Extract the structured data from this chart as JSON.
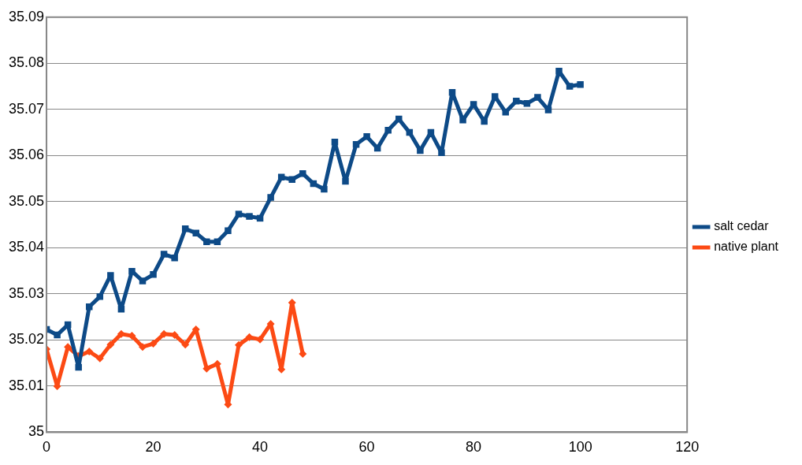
{
  "chart_data": {
    "type": "line",
    "xlim": [
      0,
      120
    ],
    "xticks": [
      0,
      20,
      40,
      60,
      80,
      100,
      120
    ],
    "ylim": [
      35,
      35.09
    ],
    "yticks": [
      35,
      35.01,
      35.02,
      35.03,
      35.04,
      35.05,
      35.06,
      35.07,
      35.08,
      35.09
    ],
    "grid": "y",
    "legend": "right",
    "line_style": "solid",
    "series": [
      {
        "name": "salt cedar",
        "color": "#0d4a87",
        "marker": "square",
        "x": [
          0,
          2,
          4,
          6,
          8,
          10,
          12,
          14,
          16,
          18,
          20,
          22,
          24,
          26,
          28,
          30,
          32,
          34,
          36,
          38,
          40,
          42,
          44,
          46,
          48,
          50,
          52,
          54,
          56,
          58,
          60,
          62,
          64,
          66,
          68,
          70,
          72,
          74,
          76,
          78,
          80,
          82,
          84,
          86,
          88,
          90,
          92,
          94,
          96,
          98,
          100
        ],
        "values": [
          35.0223,
          35.0211,
          35.0233,
          35.0141,
          35.0272,
          35.0294,
          35.034,
          35.0267,
          35.0349,
          35.0328,
          35.0342,
          35.0386,
          35.0378,
          35.0441,
          35.0432,
          35.0413,
          35.0413,
          35.0437,
          35.0473,
          35.0468,
          35.0464,
          35.0509,
          35.0553,
          35.0548,
          35.0561,
          35.0539,
          35.0527,
          35.0629,
          35.0544,
          35.0624,
          35.0641,
          35.0616,
          35.0655,
          35.0679,
          35.065,
          35.0611,
          35.065,
          35.0606,
          35.0737,
          35.0677,
          35.0711,
          35.0674,
          35.0728,
          35.0694,
          35.0718,
          35.0713,
          35.0726,
          35.0699,
          35.0783,
          35.075,
          35.0754
        ]
      },
      {
        "name": "native plant",
        "color": "#fc4a14",
        "marker": "diamond",
        "x": [
          0,
          2,
          4,
          6,
          8,
          10,
          12,
          14,
          16,
          18,
          20,
          22,
          24,
          26,
          28,
          30,
          32,
          34,
          36,
          38,
          40,
          42,
          44,
          46,
          48
        ],
        "values": [
          35.018,
          35.01,
          35.0185,
          35.0165,
          35.0175,
          35.016,
          35.019,
          35.0213,
          35.0209,
          35.0185,
          35.0192,
          35.0213,
          35.0211,
          35.019,
          35.0223,
          35.0138,
          35.0148,
          35.006,
          35.0189,
          35.0206,
          35.0201,
          35.0235,
          35.0136,
          35.0281,
          35.017
        ]
      }
    ]
  }
}
